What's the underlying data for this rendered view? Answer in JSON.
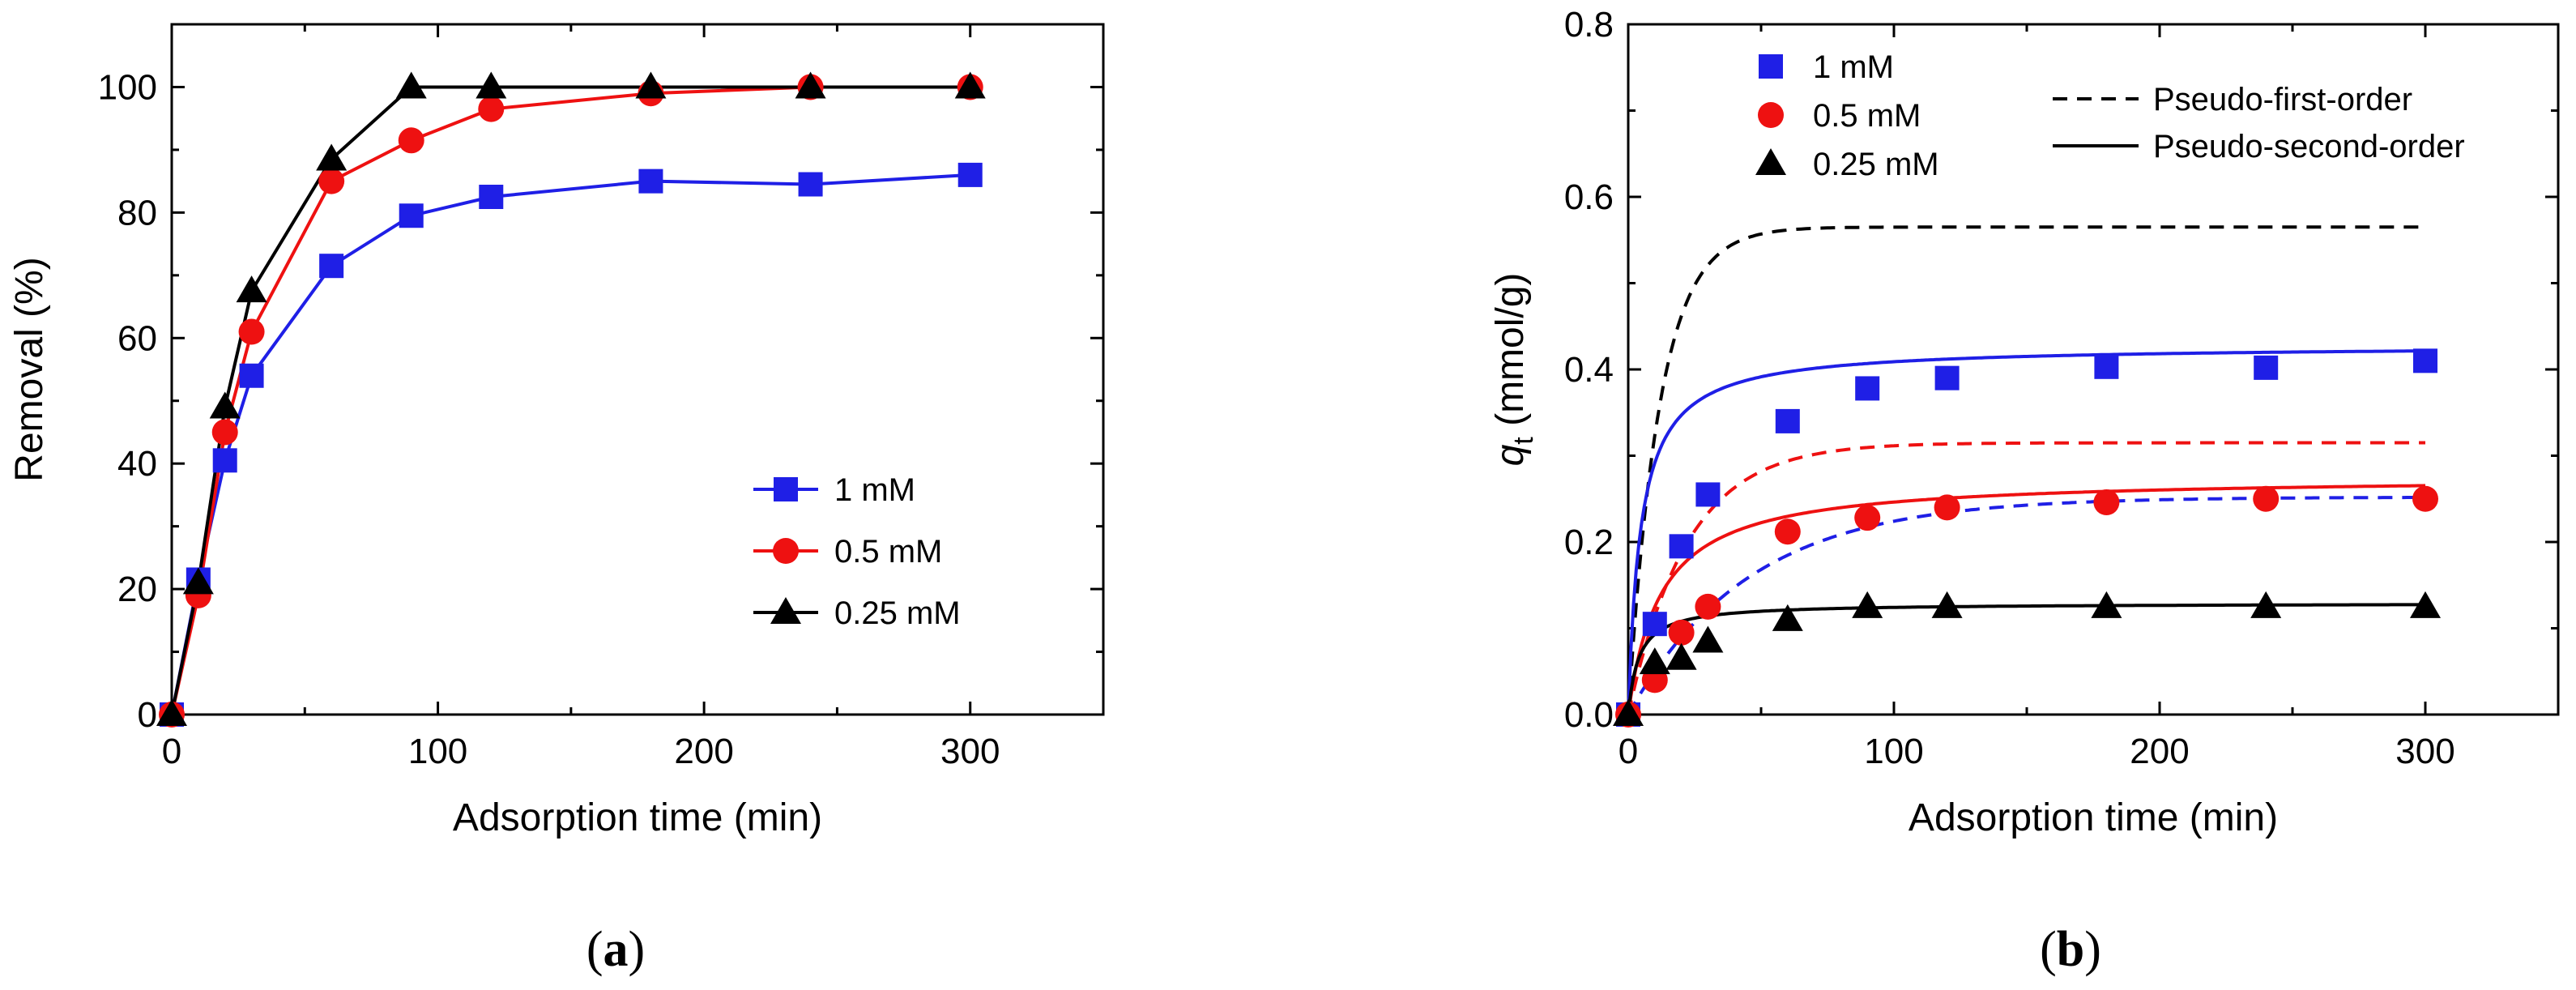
{
  "chart_data": [
    {
      "id": "a",
      "type": "line",
      "panel_label": "a",
      "title": "",
      "xlabel": "Adsorption time (min)",
      "ylabel": "Removal (%)",
      "xlim": [
        0,
        350
      ],
      "ylim": [
        0,
        110
      ],
      "xticks": [
        0,
        100,
        200,
        300
      ],
      "yticks": [
        0,
        20,
        40,
        60,
        80,
        100
      ],
      "legend_position": "lower-right",
      "series": [
        {
          "name": "1 mM",
          "color": "#1f1fe6",
          "marker": "square",
          "x": [
            0,
            10,
            20,
            30,
            60,
            90,
            120,
            180,
            240,
            300
          ],
          "values": [
            0,
            21.5,
            40.5,
            54,
            71.5,
            79.5,
            82.5,
            85,
            84.5,
            86
          ]
        },
        {
          "name": "0.5 mM",
          "color": "#ee1111",
          "marker": "circle",
          "x": [
            0,
            10,
            20,
            30,
            60,
            90,
            120,
            180,
            240,
            300
          ],
          "values": [
            0,
            19,
            45,
            61,
            85,
            91.5,
            96.5,
            99,
            100,
            100
          ]
        },
        {
          "name": "0.25 mM",
          "color": "#000000",
          "marker": "triangle",
          "x": [
            0,
            10,
            20,
            30,
            60,
            90,
            120,
            180,
            240,
            300
          ],
          "values": [
            0,
            21,
            49,
            67.5,
            88.5,
            100,
            100,
            100,
            100,
            100
          ]
        }
      ]
    },
    {
      "id": "b",
      "type": "scatter",
      "panel_label": "b",
      "title": "",
      "xlabel": "Adsorption time (min)",
      "ylabel_symbol": "q",
      "ylabel_subscript": "t",
      "ylabel_unit": " (mmol/g)",
      "xlim": [
        0,
        350
      ],
      "ylim": [
        0,
        0.8
      ],
      "xticks": [
        0,
        100,
        200,
        300
      ],
      "yticks": [
        0.0,
        0.2,
        0.4,
        0.6,
        0.8
      ],
      "ytick_labels": [
        "0.0",
        "0.2",
        "0.4",
        "0.6",
        "0.8"
      ],
      "legend_position": "top",
      "series": [
        {
          "name": "1 mM",
          "color": "#1f1fe6",
          "marker": "square",
          "x": [
            0,
            10,
            20,
            30,
            60,
            90,
            120,
            180,
            240,
            300
          ],
          "values": [
            0,
            0.105,
            0.195,
            0.255,
            0.34,
            0.378,
            0.39,
            0.403,
            0.402,
            0.41
          ]
        },
        {
          "name": "0.5 mM",
          "color": "#ee1111",
          "marker": "circle",
          "x": [
            0,
            10,
            20,
            30,
            60,
            90,
            120,
            180,
            240,
            300
          ],
          "values": [
            0,
            0.04,
            0.095,
            0.125,
            0.212,
            0.228,
            0.24,
            0.246,
            0.25,
            0.25
          ]
        },
        {
          "name": "0.25 mM",
          "color": "#000000",
          "marker": "triangle",
          "x": [
            0,
            10,
            20,
            30,
            60,
            90,
            120,
            180,
            240,
            300
          ],
          "values": [
            0,
            0.06,
            0.065,
            0.085,
            0.11,
            0.125,
            0.125,
            0.125,
            0.125,
            0.125
          ]
        }
      ],
      "fits": [
        {
          "name": "Pseudo-first-order",
          "style": "dashed",
          "legend_color": "#000000",
          "curves": [
            {
              "color": "#000000",
              "qe": 0.565,
              "k": 0.085
            },
            {
              "color": "#ee1111",
              "qe": 0.315,
              "k": 0.045
            },
            {
              "color": "#1f1fe6",
              "qe": 0.252,
              "k": 0.022
            }
          ]
        },
        {
          "name": "Pseudo-second-order",
          "style": "solid",
          "legend_color": "#000000",
          "curves": [
            {
              "color": "#1f1fe6",
              "qe": 0.428,
              "k": 0.5
            },
            {
              "color": "#ee1111",
              "qe": 0.276,
              "k": 0.3
            },
            {
              "color": "#000000",
              "qe": 0.129,
              "k": 2.0
            }
          ]
        }
      ]
    }
  ]
}
